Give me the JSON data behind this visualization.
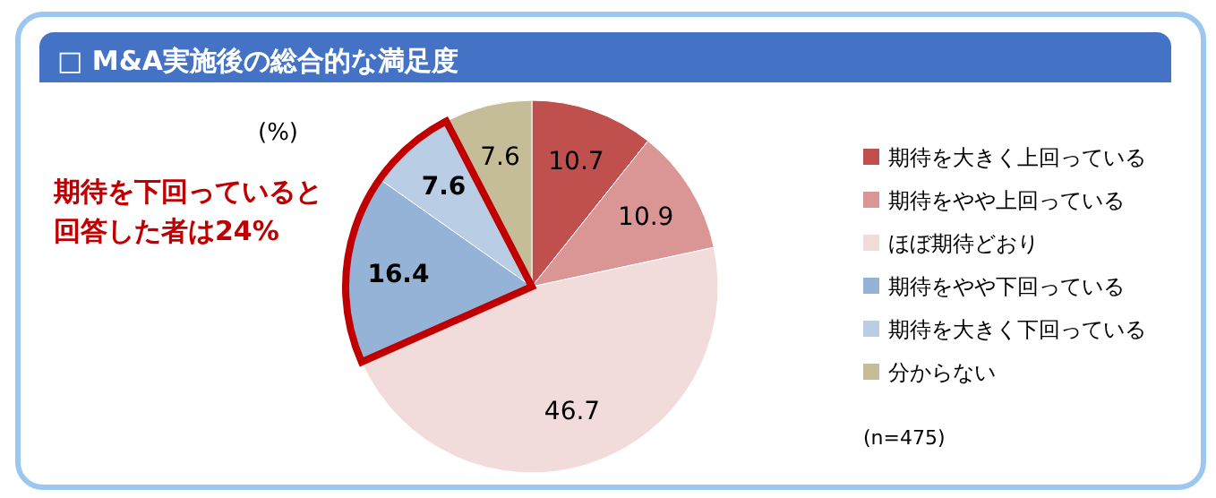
{
  "chart_data": {
    "type": "pie",
    "title": "□ M&A実施後の総合的な満足度",
    "categories": [
      "期待を大きく上回っている",
      "期待をやや上回っている",
      "ほぼ期待どおり",
      "期待をやや下回っている",
      "期待を大きく下回っている",
      "分からない"
    ],
    "values": [
      10.7,
      10.9,
      46.7,
      16.4,
      7.6,
      7.6
    ],
    "colors": [
      "#c0504d",
      "#d99694",
      "#f2dcdb",
      "#95b3d7",
      "#b9cde5",
      "#c4bd97"
    ],
    "data_labels": true,
    "legend": "right",
    "annotations": [
      "(%)",
      "期待を下回っていると回答した者は24%",
      "(n=475)"
    ]
  }
}
